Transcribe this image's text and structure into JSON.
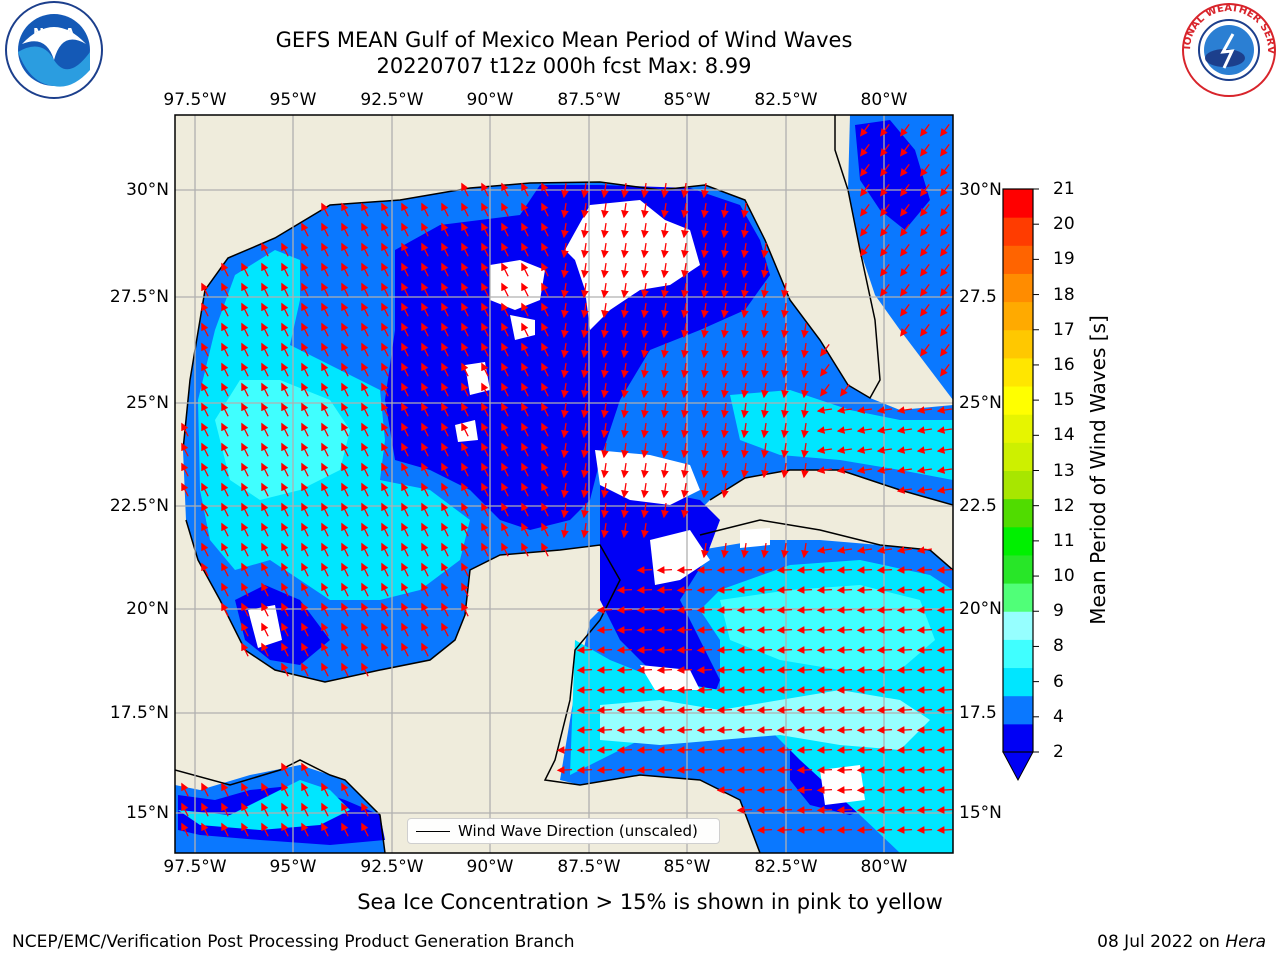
{
  "title_line1": "GEFS MEAN Gulf of Mexico Mean Period of Wind Waves",
  "title_line2": "20220707 t12z 000h fcst   Max: 8.99",
  "lon_labels": [
    "97.5°W",
    "95°W",
    "92.5°W",
    "90°W",
    "87.5°W",
    "85°W",
    "82.5°W",
    "80°W"
  ],
  "lat_labels_left": [
    "30°N",
    "27.5°N",
    "25°N",
    "22.5°N",
    "20°N",
    "17.5°N",
    "15°N"
  ],
  "lat_labels_right": [
    "30°N",
    "27.5",
    "25°N",
    "22.5",
    "20°N",
    "17.5",
    "15°N"
  ],
  "colorbar": {
    "label": "Mean Period of Wind Waves [s]",
    "ticks": [
      "2",
      "4",
      "6",
      "8",
      "9",
      "10",
      "11",
      "12",
      "13",
      "14",
      "15",
      "16",
      "17",
      "18",
      "19",
      "20",
      "21"
    ],
    "colors": [
      "#0000f5",
      "#0a78ff",
      "#00e6ff",
      "#40ffff",
      "#96ffff",
      "#50ff78",
      "#28e628",
      "#00f000",
      "#50dc00",
      "#a8e600",
      "#cdf000",
      "#e6f500",
      "#ffff00",
      "#ffe600",
      "#ffc800",
      "#ffaa00",
      "#ff8c00",
      "#ff6400",
      "#ff3c00",
      "#ff0000"
    ]
  },
  "legend_label": "Wind Wave Direction (unscaled)",
  "footer_note": "Sea Ice Concentration > 15% is shown in pink to yellow",
  "footer_left": "NCEP/EMC/Verification Post Processing Product Generation Branch",
  "footer_date": "08 Jul 2022 on",
  "footer_machine": "Hera",
  "logos": {
    "left": "NOAA",
    "right": "NATIONAL WEATHER SERVICE"
  },
  "map_colors": {
    "land": "#efecdc",
    "ocean_base": "#0a78ff",
    "arrow": "#ff0000"
  }
}
